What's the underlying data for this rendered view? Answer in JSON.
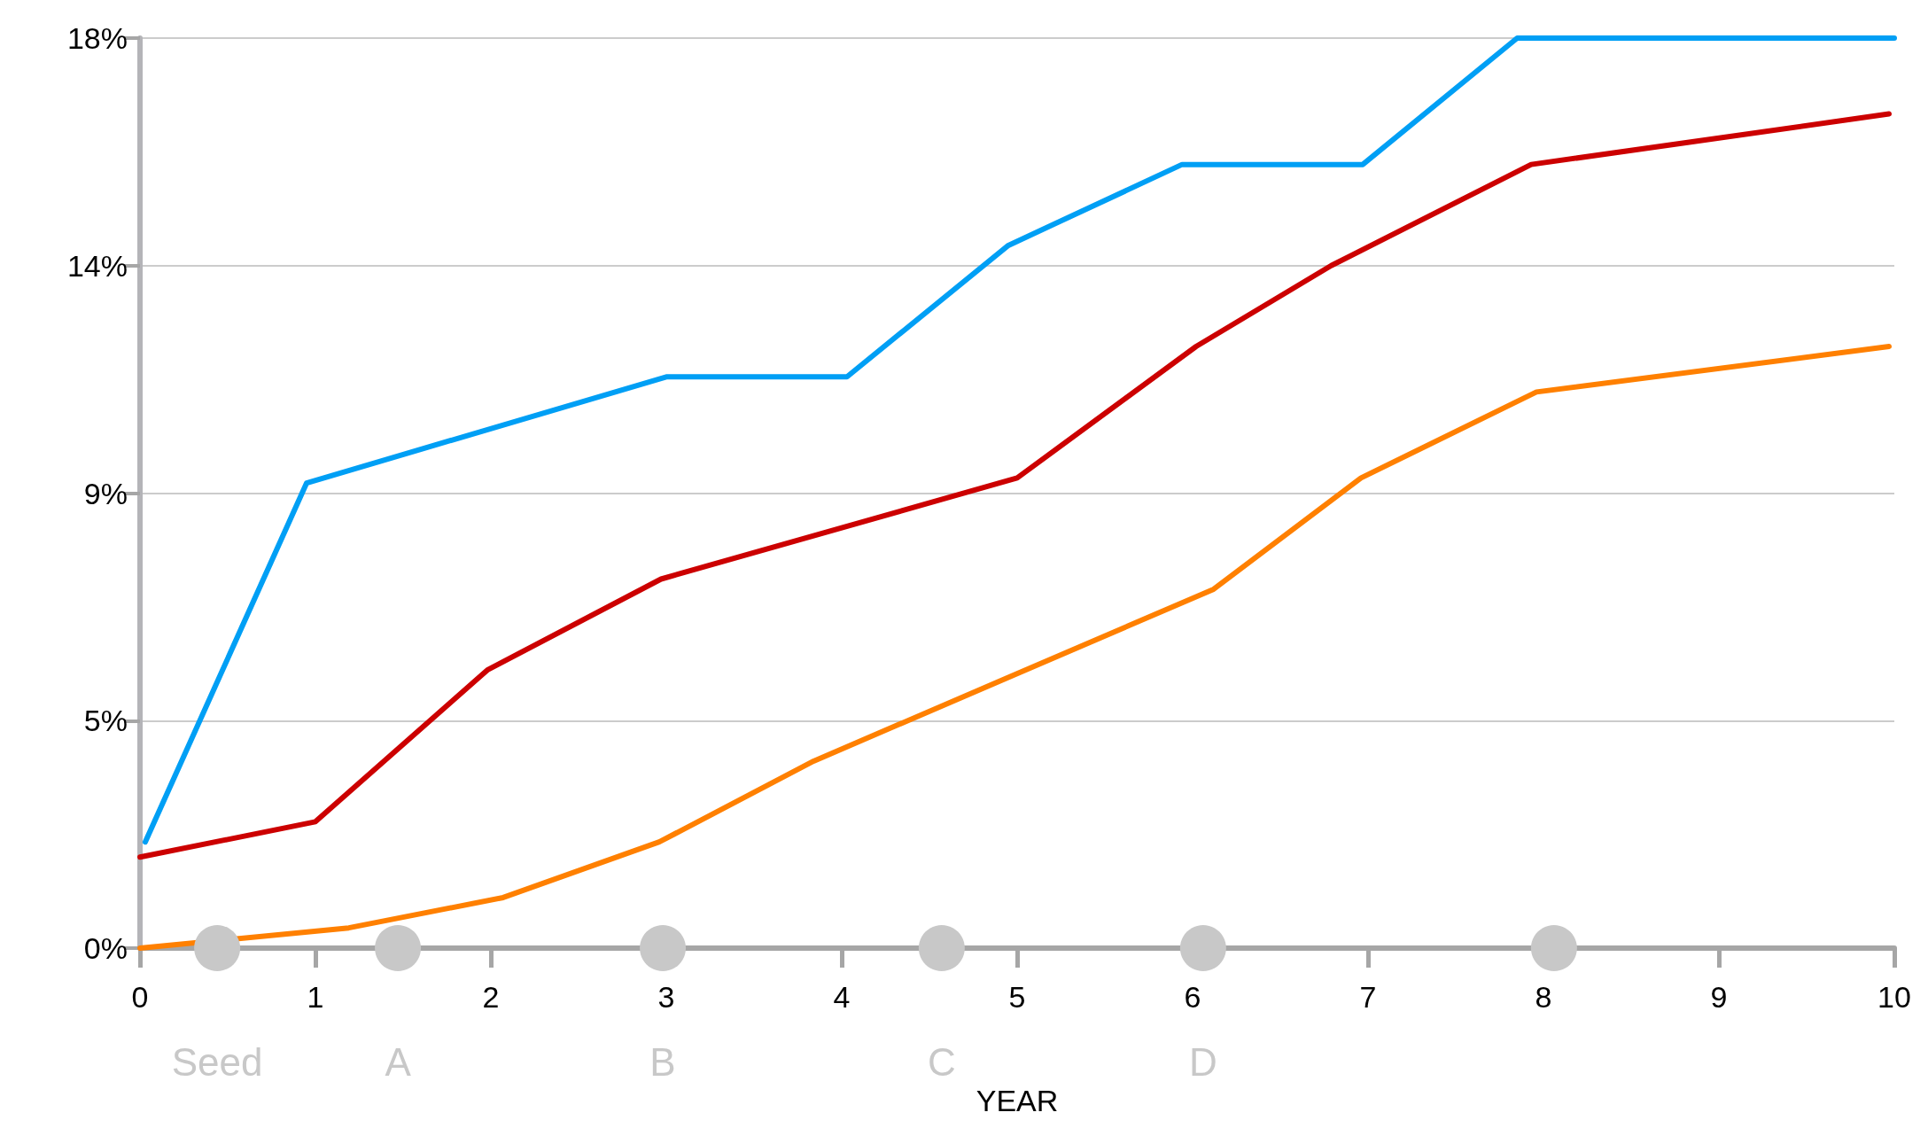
{
  "chart_data": {
    "type": "line",
    "xlabel": "YEAR",
    "xlim": [
      0,
      10
    ],
    "xticks": [
      0,
      1,
      2,
      3,
      4,
      5,
      6,
      7,
      8,
      9,
      10
    ],
    "ylim": [
      0,
      18
    ],
    "yticks": [
      {
        "value": 0,
        "label": "0%"
      },
      {
        "value": 4.5,
        "label": "5%"
      },
      {
        "value": 9,
        "label": "9%"
      },
      {
        "value": 13.5,
        "label": "14%"
      },
      {
        "value": 18,
        "label": "18%"
      }
    ],
    "grid": "y",
    "legend": false,
    "marker": "none",
    "series": [
      {
        "color": "#009ff5",
        "x": [
          0.03,
          0.95,
          3,
          4.03,
          4.95,
          5.94,
          6.97,
          7.85,
          10
        ],
        "values": [
          2.1,
          9.2,
          11.3,
          11.3,
          13.9,
          15.5,
          15.5,
          18,
          18
        ]
      },
      {
        "color": "#cc0000",
        "x": [
          0,
          1,
          1.98,
          2.97,
          5,
          6.02,
          6.79,
          7.93,
          9.97
        ],
        "values": [
          1.8,
          2.5,
          5.5,
          7.3,
          9.3,
          11.9,
          13.5,
          15.5,
          16.5
        ]
      },
      {
        "color": "#ff8000",
        "x": [
          0,
          1.19,
          2.07,
          2.96,
          3.84,
          6.12,
          6.96,
          7.96,
          9.97
        ],
        "values": [
          0,
          0.4,
          1,
          2.1,
          3.7,
          7.1,
          9.3,
          11,
          11.9
        ]
      },
      {
        "type": "scatter",
        "marker": "circle",
        "color": "#c8c8c8",
        "x": [
          0.44,
          1.47,
          2.98,
          4.57,
          6.06,
          8.06
        ],
        "values": [
          0,
          0,
          0,
          0,
          0,
          0
        ],
        "value_labels": [
          "Seed",
          "A",
          "B",
          "C",
          "D",
          null
        ]
      }
    ]
  }
}
